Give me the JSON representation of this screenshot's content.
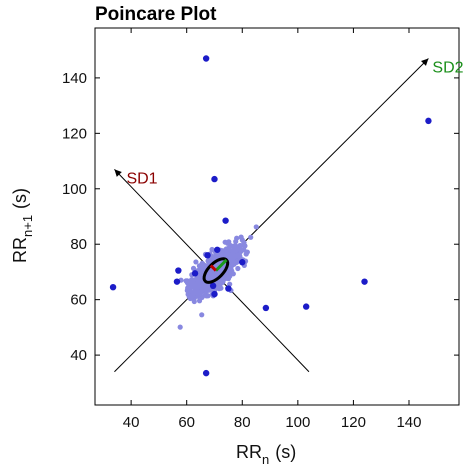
{
  "chart_data": {
    "type": "scatter",
    "title": "Poincare Plot",
    "xlabel": {
      "main": "RR",
      "sub": "n",
      "unit": "(s)"
    },
    "ylabel": {
      "main": "RR",
      "sub": "n+1",
      "unit": "(s)"
    },
    "xlim": [
      27,
      158
    ],
    "ylim": [
      22,
      158
    ],
    "xticks": [
      40,
      60,
      80,
      100,
      120,
      140
    ],
    "yticks": [
      40,
      60,
      80,
      100,
      120,
      140
    ],
    "grid": false,
    "outlier_points": [
      [
        67,
        147
      ],
      [
        147,
        124.5
      ],
      [
        70,
        103.5
      ],
      [
        74,
        88.5
      ],
      [
        67.5,
        76
      ],
      [
        57,
        70.5
      ],
      [
        63,
        69.5
      ],
      [
        56.5,
        66.5
      ],
      [
        33.5,
        64.5
      ],
      [
        75,
        64
      ],
      [
        70,
        62
      ],
      [
        88.5,
        57
      ],
      [
        103,
        57.5
      ],
      [
        124,
        66.5
      ],
      [
        67,
        33.5
      ],
      [
        80,
        73.5
      ],
      [
        69.5,
        65
      ],
      [
        71,
        78
      ]
    ],
    "cluster": {
      "center": [
        70.5,
        70.5
      ],
      "sd1": 2.2,
      "sd2": 5.5
    },
    "identity_line": {
      "from": [
        34,
        34
      ],
      "to": [
        147,
        147
      ]
    },
    "perpendicular_line": {
      "from": [
        34,
        107
      ],
      "to": [
        104,
        34
      ]
    },
    "fit_ellipse": {
      "center": [
        70.5,
        70.5
      ],
      "sd1": 2.6,
      "sd2": 5.4
    },
    "annotations": [
      {
        "label": "SD1",
        "color": "#8b0000"
      },
      {
        "label": "SD2",
        "color": "#1a8f1a"
      }
    ],
    "colors": {
      "points": "#1c1cc8",
      "cluster": "#8888e0",
      "ellipse": "#000000",
      "sd1_segment": "#c00000",
      "sd2_segment": "#1a9a1a",
      "lines": "#000000"
    }
  }
}
